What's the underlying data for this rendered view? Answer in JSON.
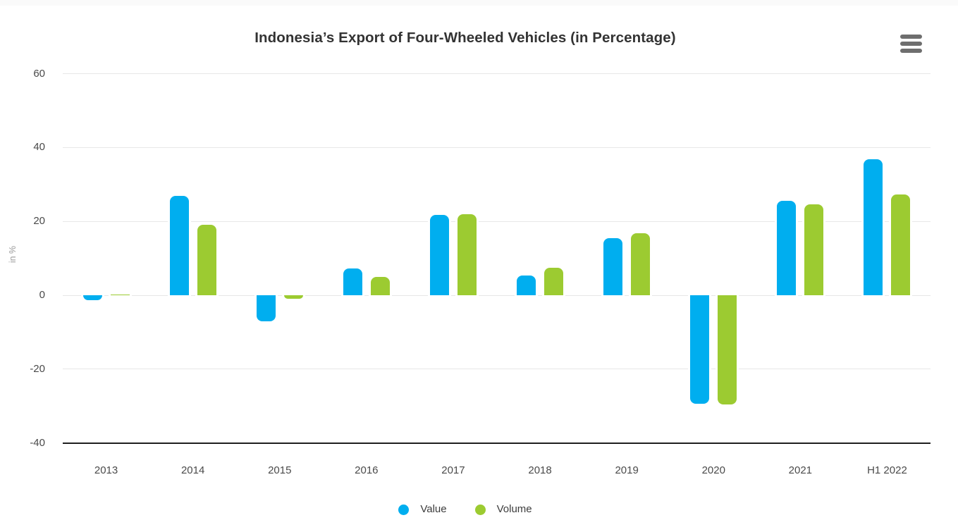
{
  "chart_data": {
    "type": "bar",
    "title": "Indonesia’s Export of Four-Wheeled Vehicles (in Percentage)",
    "categories": [
      "2013",
      "2014",
      "2015",
      "2016",
      "2017",
      "2018",
      "2019",
      "2020",
      "2021",
      "H1 2022"
    ],
    "series": [
      {
        "name": "Value",
        "color": "#00AEEF",
        "values": [
          -1.4,
          26.9,
          -7.0,
          7.3,
          21.8,
          5.4,
          15.5,
          -29.3,
          25.6,
          36.8
        ]
      },
      {
        "name": "Volume",
        "color": "#9CCB31",
        "values": [
          0.0,
          19.0,
          -1.0,
          5.0,
          22.0,
          7.4,
          16.8,
          -29.6,
          24.6,
          27.3
        ]
      }
    ],
    "xlabel": "",
    "ylabel": "in %",
    "ylim": [
      -40,
      60
    ],
    "yticks": [
      60,
      40,
      20,
      0,
      -20,
      -40
    ],
    "grid": true,
    "legend_position": "bottom"
  },
  "menu": {
    "icon": "hamburger-icon",
    "color": "#6e6e6e"
  },
  "legend": {
    "items": [
      {
        "label": "Value",
        "color": "#00AEEF"
      },
      {
        "label": "Volume",
        "color": "#9CCB31"
      }
    ]
  }
}
